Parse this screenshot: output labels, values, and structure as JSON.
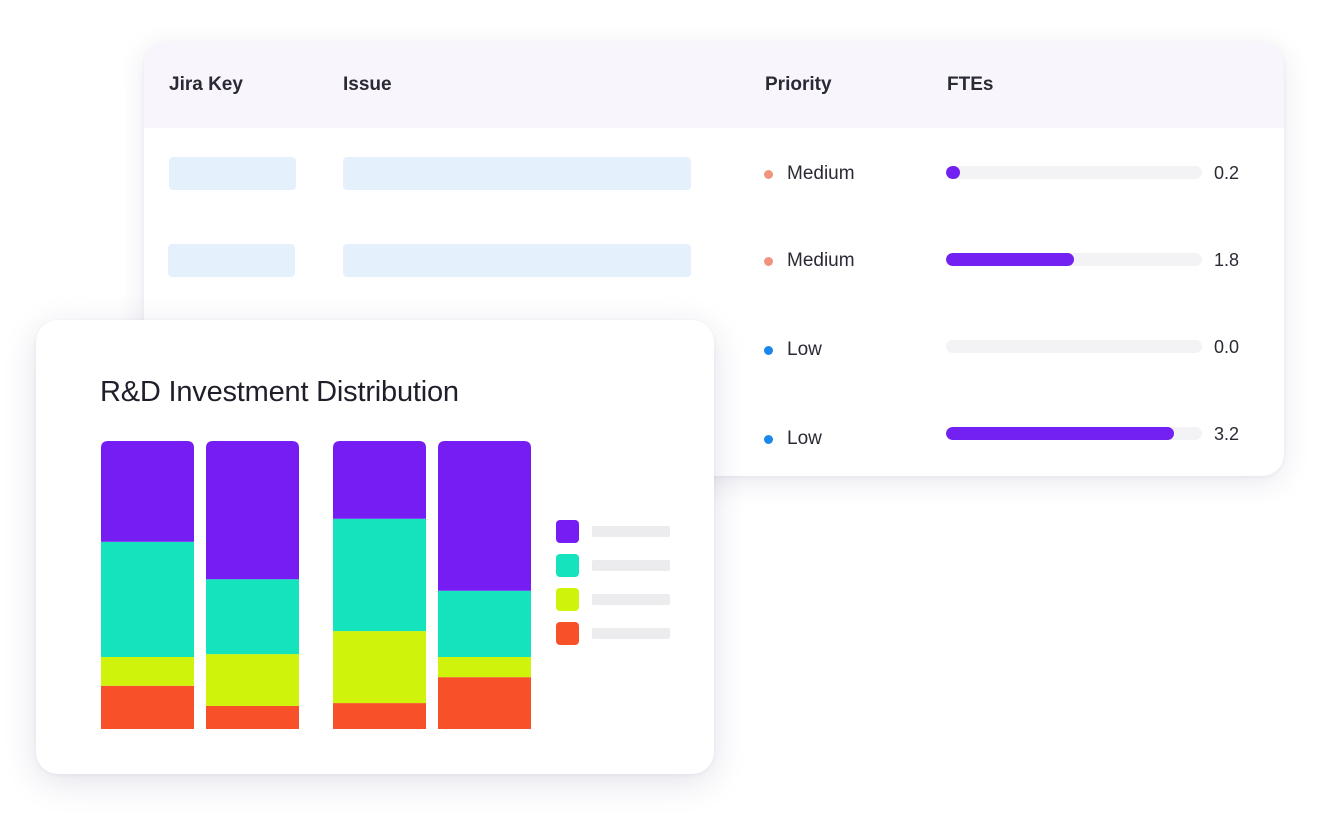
{
  "table": {
    "headers": {
      "key": "Jira Key",
      "issue": "Issue",
      "priority": "Priority",
      "ftes": "FTEs"
    },
    "rows": [
      {
        "priority": "Medium",
        "priority_color": "#f0947f",
        "fte": "0.2",
        "fte_value": 0.2
      },
      {
        "priority": "Medium",
        "priority_color": "#f0947f",
        "fte": "1.8",
        "fte_value": 1.8
      },
      {
        "priority": "Low",
        "priority_color": "#1b87ea",
        "fte": "0.0",
        "fte_value": 0.0
      },
      {
        "priority": "Low",
        "priority_color": "#1b87ea",
        "fte": "3.2",
        "fte_value": 3.2
      }
    ],
    "fte_scale_max": 3.6,
    "bar_color": "#7320f2"
  },
  "chart": {
    "title": "R&D Investment Distribution"
  },
  "chart_data": {
    "type": "bar",
    "stacked": true,
    "normalized_percent": true,
    "title": "R&D Investment Distribution",
    "xlabel": "",
    "ylabel": "",
    "ylim": [
      0,
      100
    ],
    "grid": false,
    "legend_placement": "right",
    "categories": [
      "",
      "",
      "",
      ""
    ],
    "series": [
      {
        "color": "#f85129",
        "values": [
          15,
          8,
          9,
          18
        ]
      },
      {
        "color": "#cff30b",
        "values": [
          10,
          18,
          25,
          7
        ]
      },
      {
        "color": "#14e3be",
        "values": [
          40,
          26,
          39,
          23
        ]
      },
      {
        "color": "#751df3",
        "values": [
          35,
          48,
          27,
          52
        ]
      }
    ]
  }
}
